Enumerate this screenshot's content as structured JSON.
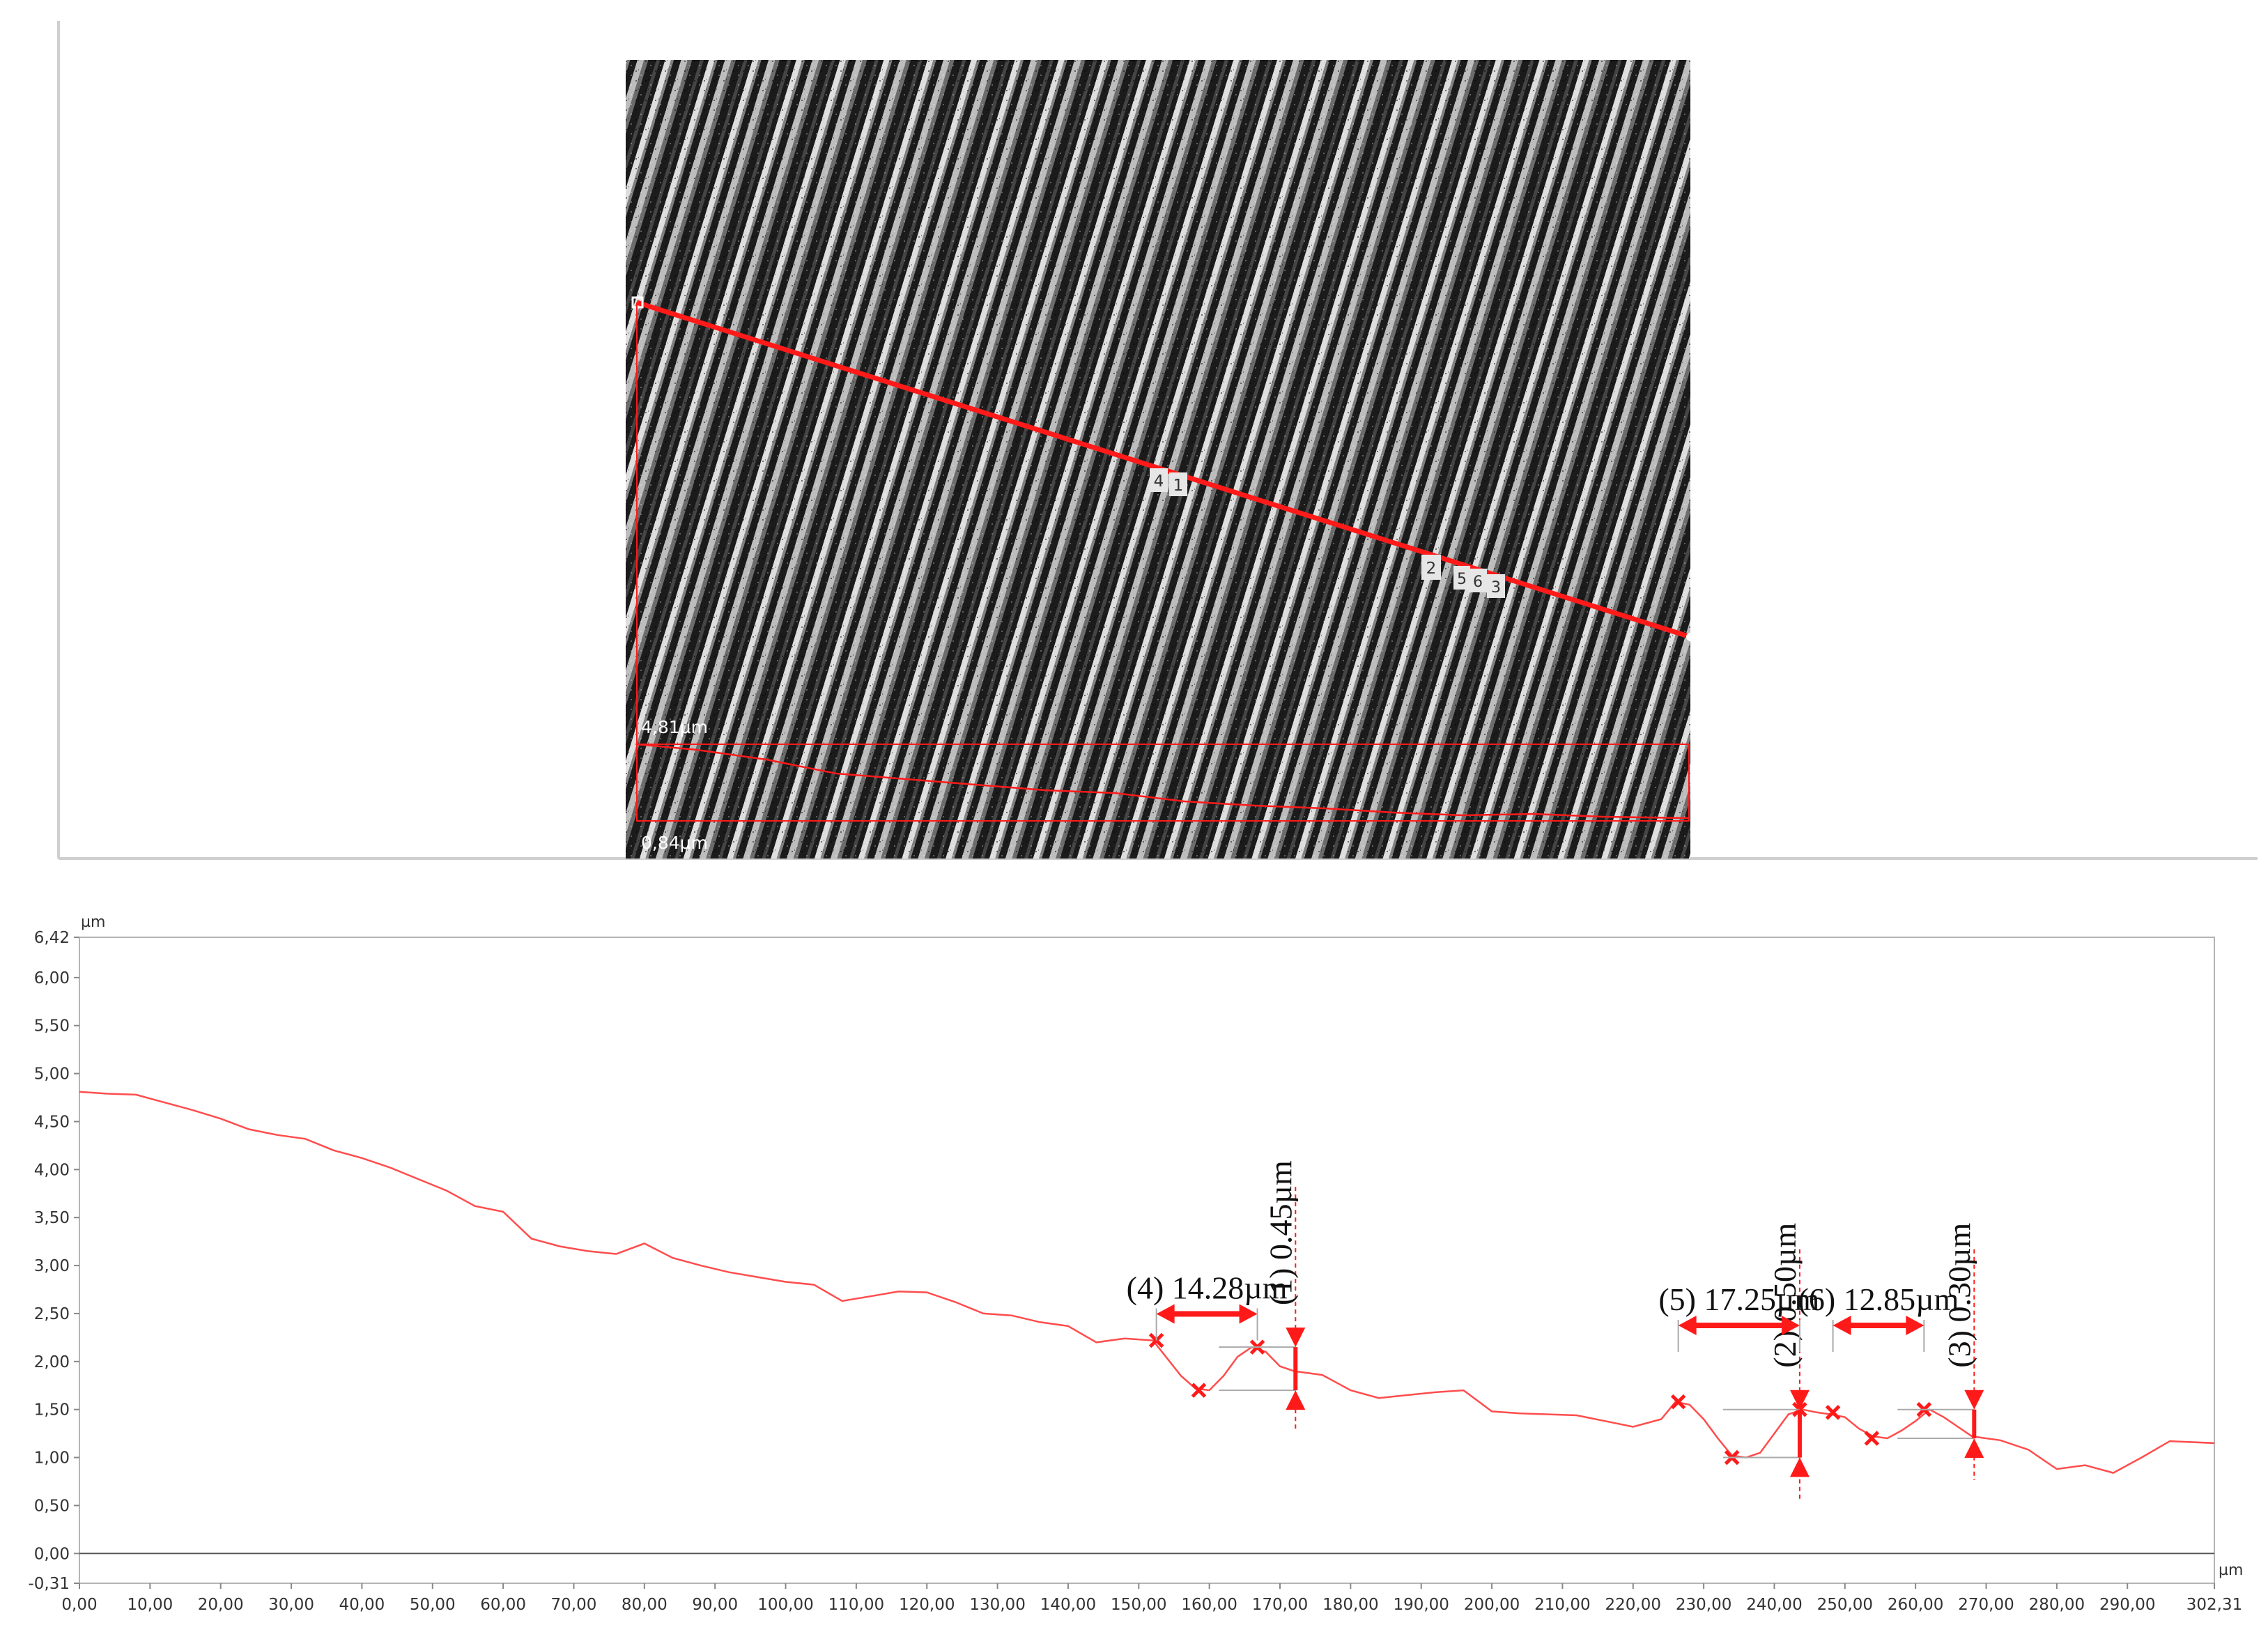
{
  "image_panel": {
    "markers": [
      "4",
      "1",
      "2",
      "5",
      "6",
      "3"
    ],
    "inset_labels": {
      "max": "4,81µm",
      "min": "0,84µm"
    }
  },
  "chart_data": {
    "type": "line",
    "title": "",
    "xlabel": "",
    "ylabel": "",
    "x_unit": "µm",
    "y_unit": "µm",
    "xlim": [
      0,
      302.31
    ],
    "ylim": [
      -0.31,
      6.42
    ],
    "x_ticks": [
      "0,00",
      "10,00",
      "20,00",
      "30,00",
      "40,00",
      "50,00",
      "60,00",
      "70,00",
      "80,00",
      "90,00",
      "100,00",
      "110,00",
      "120,00",
      "130,00",
      "140,00",
      "150,00",
      "160,00",
      "170,00",
      "180,00",
      "190,00",
      "200,00",
      "210,00",
      "220,00",
      "230,00",
      "240,00",
      "250,00",
      "260,00",
      "270,00",
      "280,00",
      "290,00",
      "302,31"
    ],
    "y_ticks": [
      "6,42",
      "6,00",
      "5,50",
      "5,00",
      "4,50",
      "4,00",
      "3,50",
      "3,00",
      "2,50",
      "2,00",
      "1,50",
      "1,00",
      "0,50",
      "0,00",
      "-0,31"
    ],
    "grid": false,
    "color": "#ff4d4d",
    "series": [
      {
        "x": [
          0,
          4,
          8,
          12,
          16,
          20,
          24,
          28,
          32,
          36,
          40,
          44,
          48,
          52,
          56,
          60,
          64,
          68,
          72,
          76,
          80,
          84,
          88,
          92,
          96,
          100,
          104,
          108,
          112,
          116,
          120,
          124,
          128,
          132,
          136,
          140,
          144,
          148,
          152,
          156,
          158,
          160,
          162,
          164,
          166,
          168,
          170,
          172,
          176,
          180,
          184,
          188,
          192,
          196,
          200,
          204,
          208,
          212,
          216,
          220,
          224,
          226,
          228,
          230,
          232,
          234,
          236,
          238,
          240,
          242,
          244,
          246,
          248,
          250,
          252,
          254,
          256,
          258,
          260,
          262,
          264,
          266,
          268,
          272,
          276,
          280,
          284,
          288,
          292,
          296,
          302.31
        ],
        "y": [
          4.81,
          4.79,
          4.78,
          4.7,
          4.62,
          4.53,
          4.42,
          4.36,
          4.32,
          4.2,
          4.12,
          4.02,
          3.9,
          3.78,
          3.62,
          3.56,
          3.28,
          3.2,
          3.15,
          3.12,
          3.23,
          3.08,
          3.0,
          2.93,
          2.88,
          2.83,
          2.8,
          2.63,
          2.68,
          2.73,
          2.72,
          2.62,
          2.5,
          2.48,
          2.41,
          2.37,
          2.2,
          2.24,
          2.22,
          1.85,
          1.72,
          1.7,
          1.85,
          2.05,
          2.15,
          2.1,
          1.95,
          1.9,
          1.86,
          1.7,
          1.62,
          1.65,
          1.68,
          1.7,
          1.48,
          1.46,
          1.45,
          1.44,
          1.38,
          1.32,
          1.4,
          1.58,
          1.55,
          1.4,
          1.2,
          1.02,
          1.0,
          1.05,
          1.25,
          1.45,
          1.5,
          1.47,
          1.45,
          1.42,
          1.3,
          1.22,
          1.2,
          1.28,
          1.38,
          1.5,
          1.42,
          1.32,
          1.22,
          1.18,
          1.08,
          0.88,
          0.92,
          0.84,
          1.0,
          1.17,
          1.15
        ]
      }
    ],
    "annotations": [
      {
        "label": "(1) 0.45µm",
        "kind": "height",
        "x": 172.2,
        "y_top": 2.15,
        "y_bottom": 1.7
      },
      {
        "label": "(2) 0.50µm",
        "kind": "height",
        "x": 243.6,
        "y_top": 1.5,
        "y_bottom": 1.0
      },
      {
        "label": "(3) 0.30µm",
        "kind": "height",
        "x": 268.3,
        "y_top": 1.5,
        "y_bottom": 1.2
      },
      {
        "label": "(4) 14.28µm",
        "kind": "width",
        "x_start": 152.5,
        "x_end": 166.8,
        "y": 2.22
      },
      {
        "label": "(5) 17.25µm",
        "kind": "width",
        "x_start": 226.4,
        "x_end": 243.6,
        "y": 2.1
      },
      {
        "label": "(6) 12.85µm",
        "kind": "width",
        "x_start": 248.3,
        "x_end": 261.2,
        "y": 2.1
      }
    ],
    "cross_points": [
      {
        "x": 152.5,
        "y": 2.22
      },
      {
        "x": 158.5,
        "y": 1.7
      },
      {
        "x": 166.8,
        "y": 2.15
      },
      {
        "x": 226.4,
        "y": 1.58
      },
      {
        "x": 234.0,
        "y": 1.0
      },
      {
        "x": 243.6,
        "y": 1.5
      },
      {
        "x": 248.3,
        "y": 1.47
      },
      {
        "x": 253.8,
        "y": 1.2
      },
      {
        "x": 261.2,
        "y": 1.5
      }
    ]
  }
}
